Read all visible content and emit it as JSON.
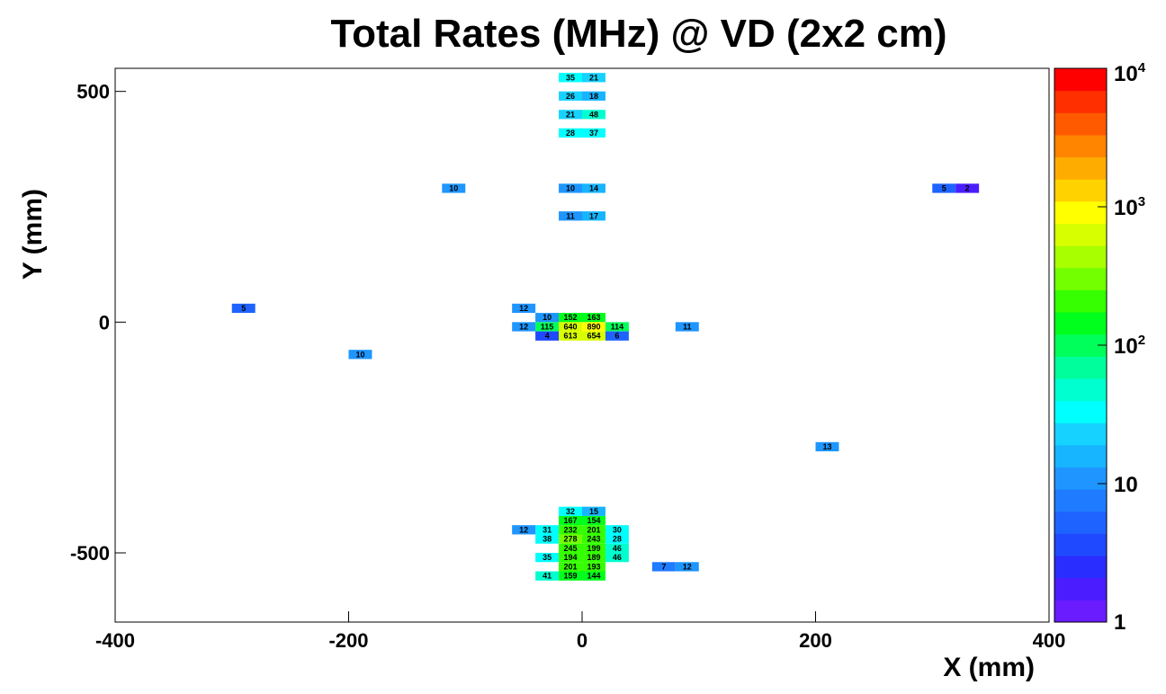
{
  "chart_data": {
    "type": "heatmap",
    "title": "Total Rates (MHz) @ VD (2x2 cm)",
    "xlabel": "X (mm)",
    "ylabel": "Y (mm)",
    "xlim": [
      -400,
      400
    ],
    "ylim": [
      -650,
      550
    ],
    "bin_size_mm": 20,
    "x_ticks": [
      "-400",
      "-200",
      "0",
      "200",
      "400"
    ],
    "y_ticks": [
      "500",
      "0",
      "-500"
    ],
    "colorbar": {
      "scale": "log",
      "min": 1,
      "max": 10000,
      "ticks": [
        {
          "base": "1",
          "exp": ""
        },
        {
          "base": "10",
          "exp": ""
        },
        {
          "base": "10",
          "exp": "2"
        },
        {
          "base": "10",
          "exp": "3"
        },
        {
          "base": "10",
          "exp": "4"
        }
      ],
      "colors": [
        "#6a1cff",
        "#4b1cff",
        "#2a2dff",
        "#1f49ff",
        "#1e63ff",
        "#1f7bff",
        "#1e95ff",
        "#17b4ff",
        "#16d2ff",
        "#00ffff",
        "#00ffd0",
        "#00ff9c",
        "#00ff5a",
        "#00ff1c",
        "#35ff00",
        "#74ff00",
        "#a8ff00",
        "#d8ff00",
        "#ffff00",
        "#ffd200",
        "#ffac00",
        "#ff8400",
        "#ff5a00",
        "#ff2f00",
        "#ff0000"
      ]
    },
    "cells": [
      {
        "x": -10,
        "y": 10,
        "v": 152
      },
      {
        "x": 10,
        "y": 10,
        "v": 163
      },
      {
        "x": -30,
        "y": 10,
        "v": 10
      },
      {
        "x": -10,
        "y": -10,
        "v": 640
      },
      {
        "x": 10,
        "y": -10,
        "v": 890
      },
      {
        "x": -30,
        "y": -10,
        "v": 115
      },
      {
        "x": 30,
        "y": -10,
        "v": 114
      },
      {
        "x": -10,
        "y": -30,
        "v": 613
      },
      {
        "x": 10,
        "y": -30,
        "v": 654
      },
      {
        "x": -30,
        "y": -30,
        "v": 4
      },
      {
        "x": 30,
        "y": -30,
        "v": 6
      },
      {
        "x": -10,
        "y": -430,
        "v": 167
      },
      {
        "x": 10,
        "y": -430,
        "v": 154
      },
      {
        "x": -10,
        "y": -450,
        "v": 232
      },
      {
        "x": 10,
        "y": -450,
        "v": 201
      },
      {
        "x": -10,
        "y": -470,
        "v": 278
      },
      {
        "x": 10,
        "y": -470,
        "v": 243
      },
      {
        "x": -10,
        "y": -490,
        "v": 245
      },
      {
        "x": 10,
        "y": -490,
        "v": 199
      },
      {
        "x": -10,
        "y": -510,
        "v": 194
      },
      {
        "x": 10,
        "y": -510,
        "v": 189
      },
      {
        "x": -10,
        "y": -530,
        "v": 201
      },
      {
        "x": 10,
        "y": -530,
        "v": 193
      },
      {
        "x": -10,
        "y": -550,
        "v": 159
      },
      {
        "x": 10,
        "y": -550,
        "v": 144
      },
      {
        "x": -10,
        "y": 530,
        "v": 35
      },
      {
        "x": 10,
        "y": 530,
        "v": 21
      },
      {
        "x": -10,
        "y": 450,
        "v": 21
      },
      {
        "x": 10,
        "y": 450,
        "v": 48
      },
      {
        "x": -10,
        "y": 290,
        "v": 10
      },
      {
        "x": 10,
        "y": 290,
        "v": 14
      },
      {
        "x": -10,
        "y": -410,
        "v": 32
      },
      {
        "x": 10,
        "y": -410,
        "v": 15
      },
      {
        "x": -30,
        "y": -450,
        "v": 31
      },
      {
        "x": -30,
        "y": -470,
        "v": 38
      },
      {
        "x": -30,
        "y": -510,
        "v": 35
      },
      {
        "x": -30,
        "y": -550,
        "v": 41
      },
      {
        "x": 30,
        "y": -450,
        "v": 30
      },
      {
        "x": 30,
        "y": -470,
        "v": 28
      },
      {
        "x": 30,
        "y": -490,
        "v": 46
      },
      {
        "x": 30,
        "y": -510,
        "v": 46
      },
      {
        "x": -10,
        "y": 490,
        "v": 26
      },
      {
        "x": 10,
        "y": 490,
        "v": 18
      },
      {
        "x": -10,
        "y": 410,
        "v": 28
      },
      {
        "x": 10,
        "y": 410,
        "v": 37
      },
      {
        "x": -10,
        "y": 230,
        "v": 11
      },
      {
        "x": 10,
        "y": 230,
        "v": 17
      },
      {
        "x": -50,
        "y": -10,
        "v": 12
      },
      {
        "x": -50,
        "y": 30,
        "v": 12
      },
      {
        "x": 90,
        "y": -10,
        "v": 11
      },
      {
        "x": -110,
        "y": 290,
        "v": 10
      },
      {
        "x": 70,
        "y": -530,
        "v": 7
      },
      {
        "x": 90,
        "y": -530,
        "v": 12
      },
      {
        "x": -50,
        "y": -450,
        "v": 12
      },
      {
        "x": -290,
        "y": 30,
        "v": 5
      },
      {
        "x": -190,
        "y": -70,
        "v": 10
      },
      {
        "x": 210,
        "y": -270,
        "v": 13
      },
      {
        "x": 310,
        "y": 290,
        "v": 5
      },
      {
        "x": 330,
        "y": 290,
        "v": 2
      }
    ]
  }
}
